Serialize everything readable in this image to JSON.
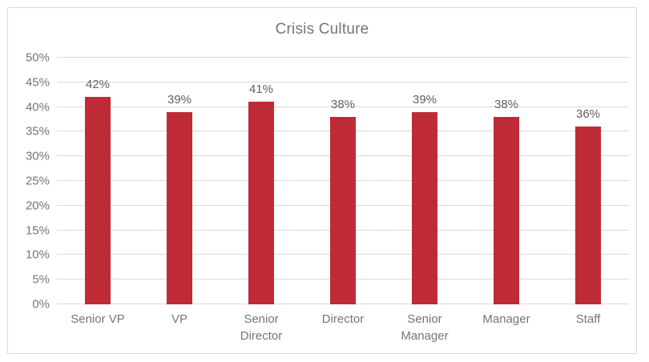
{
  "chart_data": {
    "type": "bar",
    "title": "Crisis Culture",
    "categories": [
      "Senior VP",
      "VP",
      "Senior Director",
      "Director",
      "Senior Manager",
      "Manager",
      "Staff"
    ],
    "values": [
      42,
      39,
      41,
      38,
      39,
      38,
      36
    ],
    "data_labels": [
      "42%",
      "39%",
      "41%",
      "38%",
      "39%",
      "38%",
      "36%"
    ],
    "y_ticks": [
      "0%",
      "5%",
      "10%",
      "15%",
      "20%",
      "25%",
      "30%",
      "35%",
      "40%",
      "45%",
      "50%"
    ],
    "y_tick_values": [
      0,
      5,
      10,
      15,
      20,
      25,
      30,
      35,
      40,
      45,
      50
    ],
    "ylim": [
      0,
      50
    ],
    "xlabel": "",
    "ylabel": "",
    "grid": true,
    "legend": false,
    "colors": {
      "bar": "#BE2B36",
      "gridline": "#D9D9D9",
      "axis_text": "#757575",
      "data_label_text": "#616161",
      "title_text": "#757575",
      "card_border": "#D9D9D9",
      "background": "#FFFFFF"
    }
  }
}
